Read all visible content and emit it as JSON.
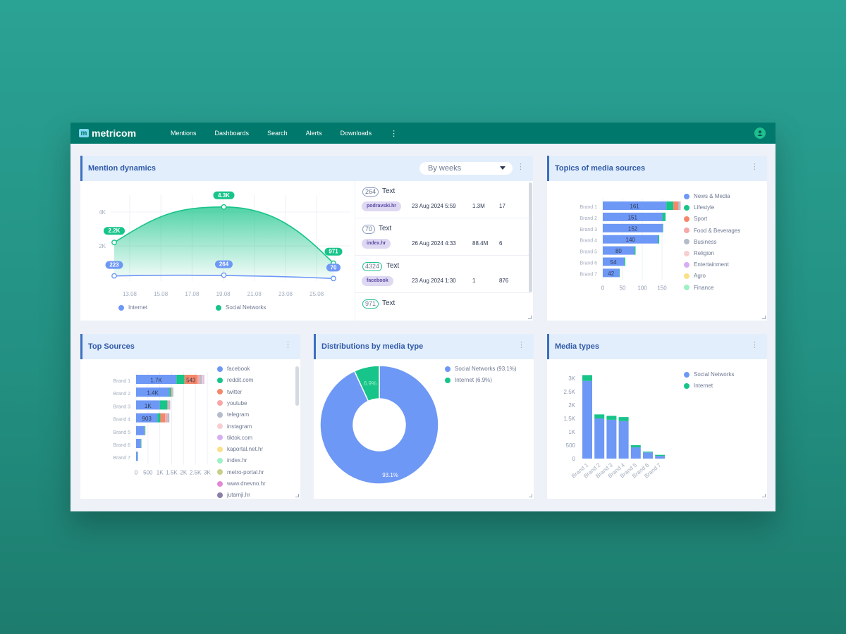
{
  "app": {
    "logo_mark": "m",
    "logo_text": "metricom"
  },
  "nav": {
    "items": [
      "Mentions",
      "Dashboards",
      "Search",
      "Alerts",
      "Downloads"
    ],
    "more_label": "⋮"
  },
  "icons": {
    "menu": "kebab-icon",
    "user": "user-icon",
    "dropdown": "chevron-down-icon",
    "resize": "resize-handle-icon"
  },
  "colors": {
    "topbar": "#00786b",
    "internet": "#6e98f5",
    "social": "#17c489",
    "accent_title": "#2f5aa8"
  },
  "mention_dynamics": {
    "title": "Mention dynamics",
    "period_select": "By weeks",
    "legend": [
      "Internet",
      "Social Networks"
    ],
    "mentions": [
      {
        "count": "264",
        "text": "Text",
        "source": "podravski.hr",
        "date": "23 Aug 2024 5:59",
        "reach": "1.3M",
        "engagement": "17",
        "color": "blue"
      },
      {
        "count": "70",
        "text": "Text",
        "source": "index.hr",
        "date": "26 Aug 2024 4:33",
        "reach": "88.4M",
        "engagement": "6",
        "color": "blue"
      },
      {
        "count": "4324",
        "text": "Text",
        "source": "facebook",
        "date": "23 Aug 2024 1:30",
        "reach": "1",
        "engagement": "876",
        "color": "green"
      },
      {
        "count": "971",
        "text": "Text",
        "source": "",
        "date": "",
        "reach": "",
        "engagement": "",
        "color": "green"
      }
    ]
  },
  "topics": {
    "title": "Topics of media sources",
    "legend": [
      {
        "label": "News & Media",
        "color": "#6e98f5"
      },
      {
        "label": "Lifestyle",
        "color": "#17c489"
      },
      {
        "label": "Sport",
        "color": "#f5876a"
      },
      {
        "label": "Food & Beverages",
        "color": "#f7a7a7"
      },
      {
        "label": "Business",
        "color": "#b4bccc"
      },
      {
        "label": "Religion",
        "color": "#f8cfd1"
      },
      {
        "label": "Entertainment",
        "color": "#d6aef2"
      },
      {
        "label": "Agro",
        "color": "#fbe08a"
      },
      {
        "label": "Finance",
        "color": "#9ef0c5"
      }
    ]
  },
  "top_sources": {
    "title": "Top Sources",
    "legend": [
      {
        "label": "facebook",
        "color": "#6e98f5"
      },
      {
        "label": "reddit.com",
        "color": "#17c489"
      },
      {
        "label": "twitter",
        "color": "#f5876a"
      },
      {
        "label": "youtube",
        "color": "#f7a7a7"
      },
      {
        "label": "telegram",
        "color": "#b4bccc"
      },
      {
        "label": "instagram",
        "color": "#f8cfd1"
      },
      {
        "label": "tiktok.com",
        "color": "#d6aef2"
      },
      {
        "label": "kaportal.net.hr",
        "color": "#fbe08a"
      },
      {
        "label": "index.hr",
        "color": "#9ef0c5"
      },
      {
        "label": "metro-portal.hr",
        "color": "#c8cf8a"
      },
      {
        "label": "www.dnevno.hr",
        "color": "#e08ad6"
      },
      {
        "label": "jutarnji.hr",
        "color": "#8a7fa8"
      }
    ]
  },
  "distribution": {
    "title": "Distributions by media type",
    "legend": [
      {
        "label": "Social Networks (93.1%)",
        "color": "#6e98f5"
      },
      {
        "label": "Internet (6.9%)",
        "color": "#17c489"
      }
    ]
  },
  "media_types": {
    "title": "Media types",
    "legend": [
      {
        "label": "Social Networks",
        "color": "#6e98f5"
      },
      {
        "label": "Internet",
        "color": "#17c489"
      }
    ]
  },
  "chart_data": [
    {
      "id": "mention-dynamics",
      "type": "area",
      "x": [
        "13.08",
        "15.08",
        "17.08",
        "19.08",
        "21.08",
        "23.08",
        "25.08"
      ],
      "yticks": [
        "2K",
        "4K"
      ],
      "series": [
        {
          "name": "Internet",
          "points": [
            [
              0,
              223
            ],
            [
              2,
              264
            ],
            [
              4,
              70
            ]
          ],
          "labels": [
            "223",
            "264",
            "70"
          ]
        },
        {
          "name": "Social Networks",
          "points": [
            [
              0,
              2200
            ],
            [
              2,
              4300
            ],
            [
              4,
              971
            ]
          ],
          "labels": [
            "2.2K",
            "4.3K",
            "971"
          ]
        }
      ],
      "legend_position": "bottom"
    },
    {
      "id": "topics-of-media-sources",
      "type": "bar",
      "orientation": "horizontal",
      "stacked": true,
      "categories": [
        "Brand 1",
        "Brand 2",
        "Brand 3",
        "Brand 4",
        "Brand 5",
        "Brand 6",
        "Brand 7"
      ],
      "xticks": [
        "0",
        "50",
        "100",
        "150"
      ],
      "xlim": [
        0,
        200
      ],
      "series": [
        {
          "name": "News & Media",
          "values": [
            161,
            151,
            152,
            140,
            80,
            54,
            42
          ],
          "labels": [
            "161",
            "151",
            "152",
            "140",
            "80",
            "54",
            "42"
          ]
        },
        {
          "name": "Lifestyle",
          "values": [
            18,
            8,
            1,
            3,
            3,
            3,
            1
          ]
        },
        {
          "name": "Sport",
          "values": [
            12,
            0,
            0,
            0,
            0,
            0,
            0
          ]
        },
        {
          "name": "Food & Beverages",
          "values": [
            0,
            0,
            0,
            0,
            0,
            0,
            0
          ]
        },
        {
          "name": "Business",
          "values": [
            5,
            0,
            0,
            0,
            0,
            0,
            0
          ]
        },
        {
          "name": "Religion",
          "values": [
            3,
            0,
            0,
            0,
            0,
            0,
            0
          ]
        }
      ]
    },
    {
      "id": "top-sources",
      "type": "bar",
      "orientation": "horizontal",
      "stacked": true,
      "categories": [
        "Brand 1",
        "Brand 2",
        "Brand 3",
        "Brand 4",
        "Brand 5",
        "Brand 6",
        "Brand 7"
      ],
      "xticks": [
        "0",
        "500",
        "1K",
        "1.5K",
        "2K",
        "2.5K",
        "3K"
      ],
      "xlim": [
        0,
        3000
      ],
      "series": [
        {
          "name": "facebook",
          "values": [
            1700,
            1400,
            1000,
            903,
            350,
            200,
            70
          ],
          "labels": [
            "1.7K",
            "1.4K",
            "1K",
            "903",
            "",
            "",
            ""
          ]
        },
        {
          "name": "reddit.com",
          "values": [
            340,
            70,
            320,
            120,
            30,
            20,
            10
          ]
        },
        {
          "name": "twitter",
          "values": [
            543,
            0,
            0,
            200,
            0,
            0,
            0
          ],
          "labels": [
            "543",
            "",
            "",
            "",
            "",
            "",
            ""
          ]
        },
        {
          "name": "youtube",
          "values": [
            100,
            50,
            60,
            90,
            10,
            5,
            5
          ]
        },
        {
          "name": "telegram",
          "values": [
            90,
            50,
            60,
            90,
            10,
            5,
            5
          ]
        },
        {
          "name": "instagram",
          "values": [
            60,
            0,
            0,
            0,
            0,
            0,
            0
          ]
        },
        {
          "name": "tiktok.com",
          "values": [
            40,
            0,
            0,
            0,
            0,
            0,
            0
          ]
        }
      ]
    },
    {
      "id": "distribution-by-media-type",
      "type": "pie",
      "donut": true,
      "categories": [
        "Social Networks",
        "Internet"
      ],
      "values": [
        93.1,
        6.9
      ],
      "labels": [
        "93.1%",
        "6.9%"
      ]
    },
    {
      "id": "media-types",
      "type": "bar",
      "stacked": true,
      "categories": [
        "Brand 1",
        "Brand 2",
        "Brand 3",
        "Brand 4",
        "Brand 5",
        "Brand 6",
        "Brand 7"
      ],
      "yticks": [
        "0",
        "500",
        "1K",
        "1.5K",
        "2K",
        "2.5K",
        "3K"
      ],
      "ylim": [
        0,
        3000
      ],
      "series": [
        {
          "name": "Social Networks",
          "values": [
            2900,
            1500,
            1450,
            1400,
            420,
            230,
            100
          ]
        },
        {
          "name": "Internet",
          "values": [
            220,
            150,
            150,
            150,
            80,
            30,
            40
          ]
        }
      ]
    }
  ]
}
